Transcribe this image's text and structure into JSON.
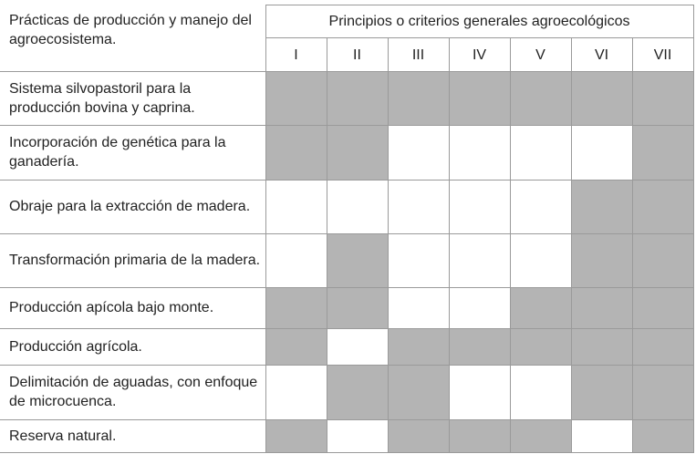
{
  "table": {
    "corner": "Prácticas de producción y manejo del agroecosistema.",
    "group_header": "Principios o criterios generales agroecológicos",
    "columns": [
      "I",
      "II",
      "III",
      "IV",
      "V",
      "VI",
      "VII"
    ],
    "rows": [
      {
        "label": "Sistema silvopastoril para la producción bovina y caprina.",
        "marked": [
          true,
          true,
          true,
          true,
          true,
          true,
          true
        ]
      },
      {
        "label": "Incorporación de genética para la ganadería.",
        "marked": [
          true,
          true,
          false,
          false,
          false,
          false,
          true
        ]
      },
      {
        "label": "Obraje para la extracción de madera.",
        "marked": [
          false,
          false,
          false,
          false,
          false,
          true,
          true
        ]
      },
      {
        "label": "Transformación primaria de la madera.",
        "marked": [
          false,
          true,
          false,
          false,
          false,
          true,
          true
        ]
      },
      {
        "label": "Producción apícola bajo monte.",
        "marked": [
          true,
          true,
          false,
          false,
          true,
          true,
          true
        ]
      },
      {
        "label": "Producción agrícola.",
        "marked": [
          true,
          false,
          true,
          true,
          true,
          true,
          true
        ]
      },
      {
        "label": "Delimitación de aguadas, con enfoque de microcuenca.",
        "marked": [
          false,
          true,
          true,
          false,
          false,
          true,
          true
        ]
      },
      {
        "label": "Reserva natural.",
        "marked": [
          true,
          false,
          true,
          true,
          true,
          false,
          true
        ]
      }
    ]
  }
}
